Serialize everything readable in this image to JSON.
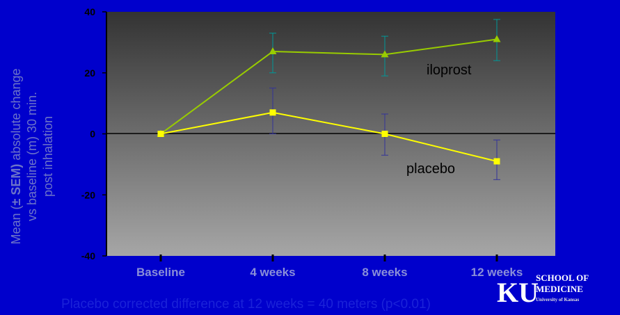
{
  "colors": {
    "background": "#0000cc",
    "plot_top": "#333333",
    "plot_bottom": "#a6a6a6",
    "iloprost": "#99cc00",
    "placebo": "#ffff00",
    "error_bar_iloprost": "#009999",
    "error_bar_placebo": "#333399",
    "category_text": "#8a8fd8",
    "ylabel_text": "#6c73c9",
    "footnote_text": "#1a22d8"
  },
  "chart_data": {
    "type": "line",
    "title": "",
    "categories": [
      "Baseline",
      "4 weeks",
      "8 weeks",
      "12 weeks"
    ],
    "ylim": [
      -40,
      40
    ],
    "yticks": [
      40,
      20,
      0,
      -20,
      -40
    ],
    "grid": false,
    "ylabel": {
      "prefix": "Mean (",
      "bold": "± SEM)",
      "rest": " absolute change",
      "line2": "vs baseline (m) 30 min.",
      "line3": "post inhalation"
    },
    "series": [
      {
        "name": "iloprost",
        "marker": "triangle",
        "values": [
          0,
          27,
          26,
          31
        ],
        "err_low": [
          0,
          20,
          19,
          24
        ],
        "err_high": [
          0,
          33,
          32,
          37.5
        ]
      },
      {
        "name": "placebo",
        "marker": "square",
        "values": [
          0,
          7,
          0,
          -9
        ],
        "err_low": [
          0,
          0,
          -7,
          -15
        ],
        "err_high": [
          0,
          15,
          6.5,
          -2
        ]
      }
    ],
    "footnote": "Placebo corrected difference at 12 weeks = 40 meters (p<0.01)"
  },
  "logo": {
    "letters": "KU",
    "line1": "SCHOOL OF",
    "line2": "MEDICINE",
    "line3": "University of Kansas"
  }
}
